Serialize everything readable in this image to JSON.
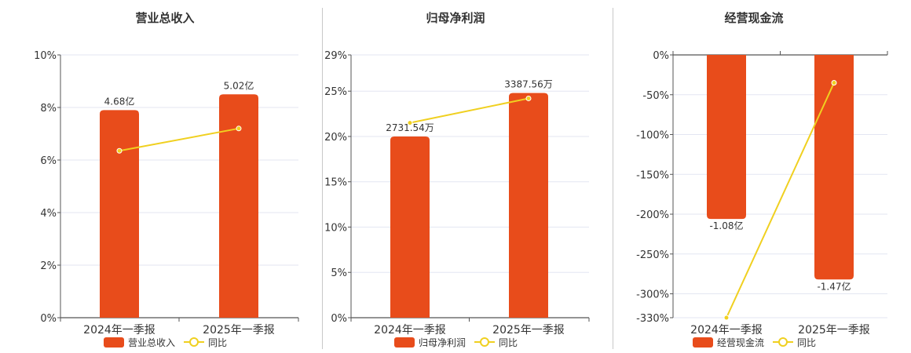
{
  "chart_data": [
    {
      "type": "bar",
      "title": "营业总收入",
      "categories": [
        "2024年一季报",
        "2025年一季报"
      ],
      "series": [
        {
          "name": "营业总收入",
          "type": "bar",
          "axis": "percent-scale",
          "values": [
            7.9,
            8.5
          ],
          "labels": [
            "4.68亿",
            "5.02亿"
          ]
        },
        {
          "name": "同比",
          "type": "line",
          "axis": "percent",
          "values": [
            6.35,
            7.2
          ]
        }
      ],
      "yaxis": {
        "ticks": [
          "0%",
          "2%",
          "4%",
          "6%",
          "8%",
          "10%"
        ],
        "ylim": [
          0,
          10
        ]
      },
      "grid": true,
      "legend": "bottom-center",
      "colors": {
        "bar": "#e84c1b",
        "line": "#f0d020"
      }
    },
    {
      "type": "bar",
      "title": "归母净利润",
      "categories": [
        "2024年一季报",
        "2025年一季报"
      ],
      "series": [
        {
          "name": "归母净利润",
          "type": "bar",
          "axis": "percent-scale",
          "values": [
            20.0,
            24.8
          ],
          "labels": [
            "2731.54万",
            "3387.56万"
          ]
        },
        {
          "name": "同比",
          "type": "line",
          "axis": "percent",
          "values": [
            21.5,
            24.2
          ]
        }
      ],
      "yaxis": {
        "ticks": [
          "0%",
          "5%",
          "10%",
          "15%",
          "20%",
          "25%",
          "29%"
        ],
        "tick_values": [
          0,
          5,
          10,
          15,
          20,
          25,
          29
        ],
        "ylim": [
          0,
          29
        ]
      },
      "grid": true,
      "legend": "bottom-center",
      "colors": {
        "bar": "#e84c1b",
        "line": "#f0d020"
      }
    },
    {
      "type": "bar",
      "title": "经营现金流",
      "categories": [
        "2024年一季报",
        "2025年一季报"
      ],
      "series": [
        {
          "name": "经营现金流",
          "type": "bar",
          "axis": "percent-scale",
          "values": [
            -206,
            -282
          ],
          "labels": [
            "-1.08亿",
            "-1.47亿"
          ]
        },
        {
          "name": "同比",
          "type": "line",
          "axis": "percent",
          "values": [
            -330,
            -35
          ]
        }
      ],
      "yaxis": {
        "ticks": [
          "0%",
          "-50%",
          "-100%",
          "-150%",
          "-200%",
          "-250%",
          "-300%",
          "-330%"
        ],
        "tick_values": [
          0,
          -50,
          -100,
          -150,
          -200,
          -250,
          -300,
          -330
        ],
        "ylim": [
          -330,
          0
        ]
      },
      "grid": true,
      "legend": "bottom-center",
      "colors": {
        "bar": "#e84c1b",
        "line": "#f0d020"
      }
    }
  ]
}
